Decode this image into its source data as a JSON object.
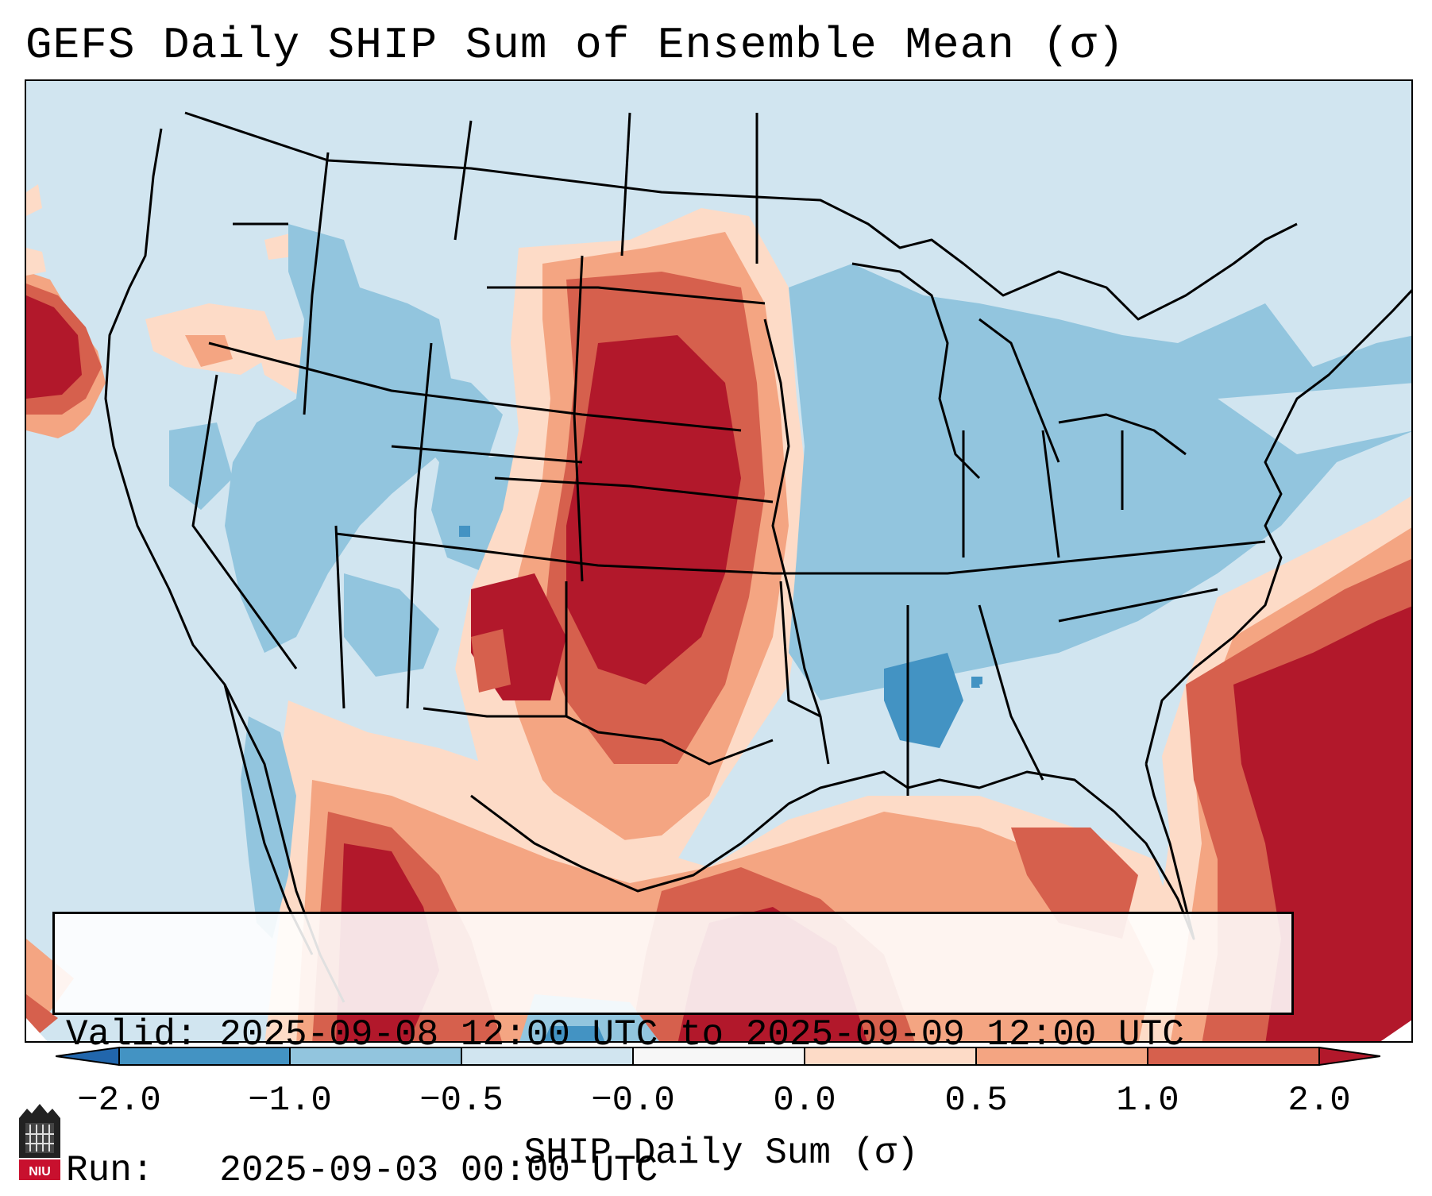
{
  "title": "GEFS Daily SHIP Sum of Ensemble Mean (σ)",
  "info": {
    "valid": "Valid: 2025-09-08 12:00 UTC to 2025-09-09 12:00 UTC",
    "run": "Run:   2025-09-03 00:00 UTC"
  },
  "colorbar": {
    "label": "SHIP Daily Sum (σ)",
    "ticks": [
      "−2.0",
      "−1.0",
      "−0.5",
      "−0.0",
      "0.0",
      "0.5",
      "1.0",
      "2.0"
    ],
    "bins": [
      {
        "range": "-2.0 to -1.0",
        "color": "#4393c3"
      },
      {
        "range": "-1.0 to -0.5",
        "color": "#92c5de"
      },
      {
        "range": "-0.5 to -0.0",
        "color": "#d1e5f0"
      },
      {
        "range": "-0.0 to 0.0",
        "color": "#f7f7f7"
      },
      {
        "range": "0.0 to 0.5",
        "color": "#fddbc7"
      },
      {
        "range": "0.5 to 1.0",
        "color": "#f4a582"
      },
      {
        "range": "1.0 to 2.0",
        "color": "#d6604d"
      }
    ],
    "under_color": "#2166ac",
    "over_color": "#b2182b",
    "extend": "both"
  },
  "logo": {
    "text": "NIU"
  }
}
